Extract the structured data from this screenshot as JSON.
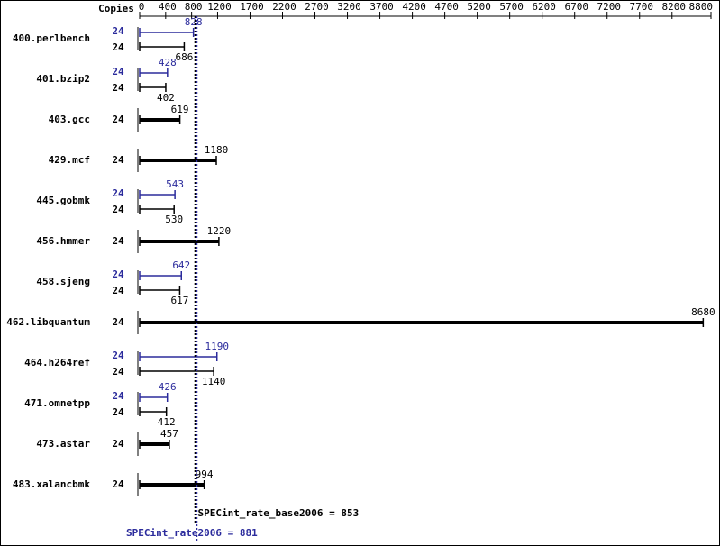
{
  "chart_data": {
    "type": "bar",
    "orientation": "horizontal",
    "copies_label": "Copies",
    "categories": [
      "400.perlbench",
      "401.bzip2",
      "403.gcc",
      "429.mcf",
      "445.gobmk",
      "456.hmmer",
      "458.sjeng",
      "462.libquantum",
      "464.h264ref",
      "471.omnetpp",
      "473.astar",
      "483.xalancbmk"
    ],
    "series": [
      {
        "color": "#2b2b9c",
        "copies": [
          24,
          24,
          null,
          null,
          24,
          null,
          24,
          null,
          24,
          24,
          null,
          null
        ],
        "values": [
          828,
          428,
          null,
          null,
          543,
          null,
          642,
          null,
          1190,
          426,
          null,
          null
        ]
      },
      {
        "color": "#000000",
        "copies": [
          24,
          24,
          24,
          24,
          24,
          24,
          24,
          24,
          24,
          24,
          24,
          24
        ],
        "values": [
          686,
          402,
          619,
          1180,
          530,
          1220,
          617,
          8680,
          1140,
          412,
          457,
          994
        ]
      }
    ],
    "xlim": [
      0,
      8800
    ],
    "xticks": [
      0,
      400,
      800,
      1200,
      1700,
      2200,
      2700,
      3200,
      3700,
      4200,
      4700,
      5200,
      5700,
      6200,
      6700,
      7200,
      7700,
      8200,
      8800
    ],
    "reference_lines": [
      {
        "label": "SPECint_rate_base2006 = 853",
        "value": 853,
        "color": "#000000"
      },
      {
        "label": "SPECint_rate2006 = 881",
        "value": 881,
        "color": "#2b2b9c"
      }
    ]
  }
}
